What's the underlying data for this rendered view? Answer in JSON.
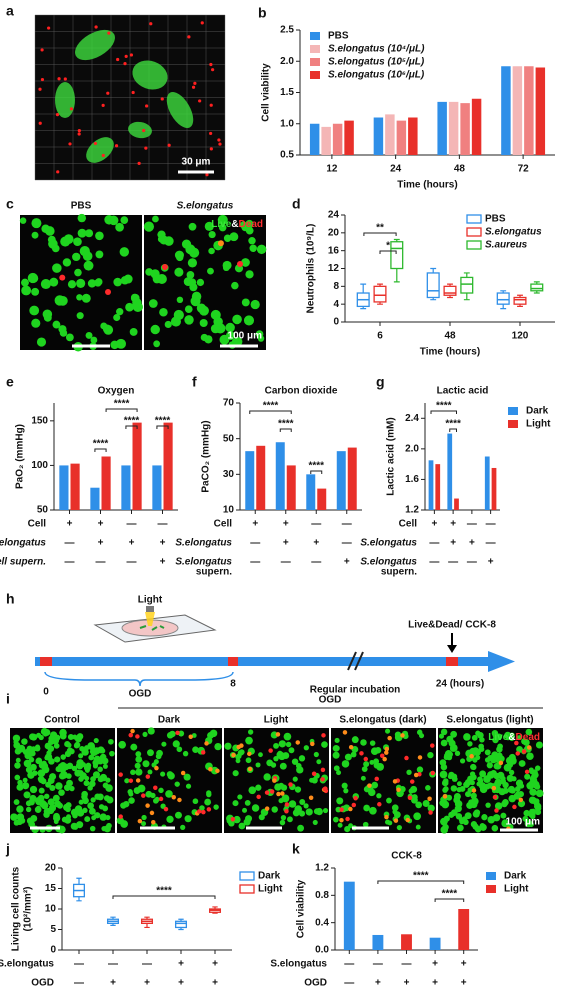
{
  "figure": {
    "a": {
      "label": "a",
      "scale_bar": "30 μm"
    },
    "b": {
      "label": "b"
    },
    "c": {
      "label": "c",
      "groups": [
        "PBS",
        "S.elongatus"
      ],
      "stain": [
        "Live",
        "&",
        "Dead"
      ],
      "scale_bar": "100 μm"
    },
    "d": {
      "label": "d"
    },
    "e": {
      "label": "e"
    },
    "f": {
      "label": "f"
    },
    "g": {
      "label": "g"
    },
    "h": {
      "label": "h",
      "light": "Light",
      "start": "0",
      "phase": "OGD",
      "phase_end": "8",
      "regular": "Regular incubation",
      "assay": "Live&Dead/ CCK-8",
      "end": "24 (hours)"
    },
    "i": {
      "label": "i",
      "control": "Control",
      "group": "OGD",
      "conditions": [
        "Dark",
        "Light",
        "S.elongatus (dark)",
        "S.elongatus (light)"
      ],
      "stain": [
        "Live",
        "&",
        "Dead"
      ],
      "scale_bar": "100 μm"
    },
    "j": {
      "label": "j"
    },
    "k": {
      "label": "k"
    }
  },
  "chart_data": [
    {
      "type": "bar",
      "ylabel": "Cell viability",
      "xlabel": "Time (hours)",
      "categories": [
        "12",
        "24",
        "48",
        "72"
      ],
      "ylim": [
        0.5,
        2.5
      ],
      "yticks": [
        0.5,
        {
          "value": 1,
          "label": "1.0"
        },
        1.5,
        {
          "value": 2,
          "label": "2.0"
        },
        2.5
      ],
      "legend": "top-left",
      "series": [
        {
          "name": "PBS",
          "color": "#2f8fe8",
          "values": [
            1.0,
            1.1,
            1.35,
            1.92
          ]
        },
        {
          "name": "S.elongatus (10⁴/μL)",
          "color": "#f4b6b6",
          "values": [
            0.95,
            1.15,
            1.35,
            1.92
          ]
        },
        {
          "name": "S.elongatus (10⁵/μL)",
          "color": "#f08080",
          "values": [
            1.0,
            1.05,
            1.33,
            1.92
          ]
        },
        {
          "name": "S.elongatus (10⁶/μL)",
          "color": "#e8302a",
          "values": [
            1.05,
            1.1,
            1.4,
            1.9
          ]
        }
      ]
    },
    {
      "type": "box",
      "ylabel": "Neutrophils (10⁹/L)",
      "xlabel": "Time (hours)",
      "categories": [
        "6",
        "48",
        "120"
      ],
      "ylim": [
        0,
        24
      ],
      "yticks": [
        0,
        4,
        8,
        12,
        16,
        20,
        24
      ],
      "legend": "top-right",
      "annotations": [
        "**",
        "*"
      ],
      "series": [
        {
          "name": "PBS",
          "color": "#2f8fe8",
          "boxes": [
            {
              "min": 3,
              "q1": 3.5,
              "median": 5,
              "q3": 6.5,
              "max": 8.5
            },
            {
              "min": 5,
              "q1": 5.5,
              "median": 7,
              "q3": 11,
              "max": 12
            },
            {
              "min": 3,
              "q1": 4,
              "median": 5,
              "q3": 6.5,
              "max": 7
            }
          ]
        },
        {
          "name": "S.elongatus",
          "color": "#e8302a",
          "boxes": [
            {
              "min": 4,
              "q1": 4.5,
              "median": 6,
              "q3": 8,
              "max": 8.5
            },
            {
              "min": 5.5,
              "q1": 6,
              "median": 6.5,
              "q3": 8,
              "max": 8.5
            },
            {
              "min": 3.5,
              "q1": 4,
              "median": 5,
              "q3": 5.5,
              "max": 6
            }
          ]
        },
        {
          "name": "S.aureus",
          "color": "#2db82d",
          "boxes": [
            {
              "min": 9,
              "q1": 12,
              "median": 16.5,
              "q3": 18,
              "max": 18.5
            },
            {
              "min": 5,
              "q1": 6.5,
              "median": 8.5,
              "q3": 10,
              "max": 11
            },
            {
              "min": 6.5,
              "q1": 7,
              "median": 7.5,
              "q3": 8.5,
              "max": 9
            }
          ]
        }
      ]
    },
    {
      "type": "bar",
      "title": "Oxygen",
      "ylabel": "PaO₂ (mmHg)",
      "categories": [
        null,
        null,
        null,
        null
      ],
      "ylim": [
        50,
        170
      ],
      "yticks": [
        50,
        100,
        150
      ],
      "annotations": [
        "****",
        "****",
        "****",
        "****"
      ],
      "conditions": [
        {
          "label": [
            "Cell"
          ],
          "values": [
            "+",
            "+",
            "—",
            "—"
          ]
        },
        {
          "label": [
            "S.elongatus"
          ],
          "values": [
            "—",
            "+",
            "+",
            "+"
          ]
        },
        {
          "label": [
            "Cell supern."
          ],
          "values": [
            "—",
            "—",
            "—",
            "+"
          ]
        }
      ],
      "series": [
        {
          "color": "#2f8fe8",
          "values": [
            100,
            75,
            100,
            100
          ]
        },
        {
          "color": "#e8302a",
          "values": [
            102,
            110,
            148,
            148
          ]
        }
      ]
    },
    {
      "type": "bar",
      "title": "Carbon dioxide",
      "ylabel": "PaCO₂ (mmHg)",
      "categories": [
        null,
        null,
        null,
        null
      ],
      "ylim": [
        10,
        70
      ],
      "yticks": [
        10,
        30,
        50,
        70
      ],
      "annotations": [
        "****",
        "****",
        "****"
      ],
      "conditions": [
        {
          "label": [
            "Cell"
          ],
          "values": [
            "+",
            "+",
            "—",
            "—"
          ]
        },
        {
          "label": [
            "S.elongatus"
          ],
          "values": [
            "—",
            "+",
            "+",
            "—"
          ]
        },
        {
          "label": [
            "S.elongatus",
            "supern."
          ],
          "values": [
            "—",
            "—",
            "—",
            "+"
          ]
        }
      ],
      "series": [
        {
          "color": "#2f8fe8",
          "values": [
            43,
            48,
            30,
            43
          ]
        },
        {
          "color": "#e8302a",
          "values": [
            46,
            35,
            22,
            45
          ]
        }
      ]
    },
    {
      "type": "bar",
      "title": "Lactic acid",
      "ylabel": "Lactic acid (mM)",
      "categories": [
        null,
        null,
        null,
        null
      ],
      "ylim": [
        1.2,
        2.6
      ],
      "yticks": [
        1.2,
        1.6,
        {
          "value": 2,
          "label": "2.0"
        },
        2.4
      ],
      "legend": "right",
      "annotations": [
        "****",
        "****"
      ],
      "conditions": [
        {
          "label": [
            "Cell"
          ],
          "values": [
            "+",
            "+",
            "—",
            "—"
          ]
        },
        {
          "label": [
            "S.elongatus"
          ],
          "values": [
            "—",
            "+",
            "+",
            "—"
          ]
        },
        {
          "label": [
            "S.elongatus",
            "supern."
          ],
          "values": [
            "—",
            "—",
            "—",
            "+"
          ]
        }
      ],
      "series": [
        {
          "name": "Dark",
          "color": "#2f8fe8",
          "values": [
            1.85,
            2.2,
            null,
            1.9
          ]
        },
        {
          "name": "Light",
          "color": "#e8302a",
          "values": [
            1.8,
            1.35,
            null,
            1.75
          ]
        }
      ]
    },
    {
      "type": "box",
      "ylabel": [
        "Living cell counts",
        "(10²/mm²)"
      ],
      "categories": [
        null,
        null,
        null,
        null,
        null
      ],
      "ylim": [
        0,
        20
      ],
      "yticks": [
        0,
        5,
        10,
        15,
        20
      ],
      "legend": "right",
      "annotations": [
        "****"
      ],
      "conditions": [
        {
          "label": [
            "S.elongatus"
          ],
          "values": [
            "—",
            "—",
            "—",
            "+",
            "+"
          ]
        },
        {
          "label": [
            "OGD"
          ],
          "values": [
            "—",
            "+",
            "+",
            "+",
            "+"
          ]
        }
      ],
      "series": [
        {
          "name": "Dark",
          "color": "#2f8fe8",
          "boxes": [
            {
              "min": 12,
              "q1": 13,
              "median": 14.5,
              "q3": 16,
              "max": 17.5
            },
            {
              "min": 6,
              "q1": 6.5,
              "median": 7,
              "q3": 7.5,
              "max": 8
            },
            null,
            {
              "min": 5,
              "q1": 5.5,
              "median": 6.5,
              "q3": 7,
              "max": 7.5
            },
            null
          ]
        },
        {
          "name": "Light",
          "color": "#e8302a",
          "boxes": [
            null,
            null,
            {
              "min": 5.5,
              "q1": 6.5,
              "median": 7,
              "q3": 7.5,
              "max": 8
            },
            null,
            {
              "min": 9,
              "q1": 9.2,
              "median": 9.7,
              "q3": 10,
              "max": 10.5
            }
          ]
        }
      ]
    },
    {
      "type": "bar",
      "title": "CCK-8",
      "ylabel": "Cell viability",
      "categories": [
        null,
        null,
        null,
        null,
        null
      ],
      "ylim": [
        0,
        1.2
      ],
      "yticks": [
        {
          "value": 0,
          "label": "0.0"
        },
        0.4,
        0.8,
        1.2
      ],
      "legend": "right",
      "annotations": [
        "****",
        "****"
      ],
      "conditions": [
        {
          "label": [
            "S.elongatus"
          ],
          "values": [
            "—",
            "—",
            "—",
            "+",
            "+"
          ]
        },
        {
          "label": [
            "OGD"
          ],
          "values": [
            "—",
            "+",
            "+",
            "+",
            "+"
          ]
        }
      ],
      "series": [
        {
          "name": "Dark",
          "color": "#2f8fe8",
          "values": [
            1.0,
            0.22,
            null,
            0.18,
            null
          ]
        },
        {
          "name": "Light",
          "color": "#e8302a",
          "values": [
            null,
            null,
            0.23,
            null,
            0.6
          ]
        }
      ]
    }
  ]
}
